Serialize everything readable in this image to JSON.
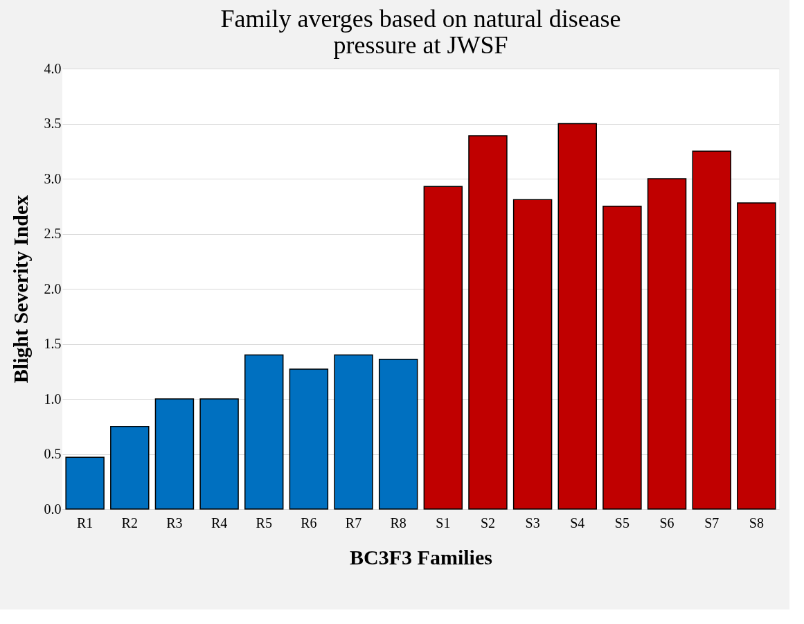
{
  "chart_data": {
    "type": "bar",
    "title": "Family averges based on natural disease\npressure at JWSF",
    "xlabel": "BC3F3 Families",
    "ylabel": "Blight Severity Index",
    "categories": [
      "R1",
      "R2",
      "R3",
      "R4",
      "R5",
      "R6",
      "R7",
      "R8",
      "S1",
      "S2",
      "S3",
      "S4",
      "S5",
      "S6",
      "S7",
      "S8"
    ],
    "values": [
      0.47,
      0.75,
      1.0,
      1.0,
      1.4,
      1.27,
      1.4,
      1.36,
      2.93,
      3.39,
      2.81,
      3.5,
      2.75,
      3.0,
      3.25,
      2.78
    ],
    "colors": [
      "#0070c0",
      "#0070c0",
      "#0070c0",
      "#0070c0",
      "#0070c0",
      "#0070c0",
      "#0070c0",
      "#0070c0",
      "#c00000",
      "#c00000",
      "#c00000",
      "#c00000",
      "#c00000",
      "#c00000",
      "#c00000",
      "#c00000"
    ],
    "ylim": [
      0,
      4.0
    ],
    "yticks": [
      {
        "value": 0,
        "label": "0.0"
      },
      {
        "value": 0.5,
        "label": "0.5"
      },
      {
        "value": 1,
        "label": "1.0"
      },
      {
        "value": 1.5,
        "label": "1.5"
      },
      {
        "value": 2,
        "label": "2.0"
      },
      {
        "value": 2.5,
        "label": "2.5"
      },
      {
        "value": 3,
        "label": "3.0"
      },
      {
        "value": 3.5,
        "label": "3.5"
      },
      {
        "value": 4,
        "label": "4.0"
      }
    ],
    "grid": "y"
  }
}
